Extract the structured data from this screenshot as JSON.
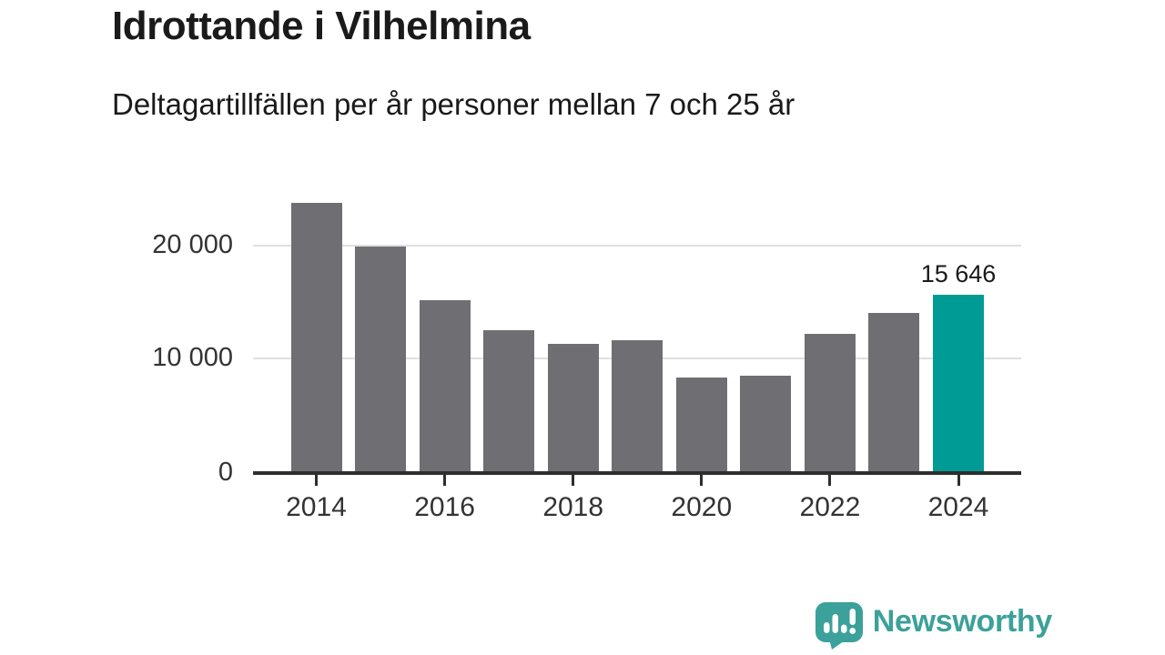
{
  "colors": {
    "text": "#1a1a1a",
    "bar": "#6e6e73",
    "highlight": "#009b94",
    "grid": "#e0e0e0",
    "axis": "#2e2e2e",
    "brand": "#3ba19a"
  },
  "header": {
    "title": "Idrottande i Vilhelmina",
    "subtitle": "Deltagartillfällen per år personer mellan 7 och 25 år"
  },
  "chart_data": {
    "type": "bar",
    "title": "Idrottande i Vilhelmina",
    "subtitle": "Deltagartillfällen per år personer mellan 7 och 25 år",
    "categories": [
      "2014",
      "2015",
      "2016",
      "2017",
      "2018",
      "2019",
      "2020",
      "2021",
      "2022",
      "2023",
      "2024"
    ],
    "values": [
      23800,
      19900,
      15150,
      12500,
      11300,
      11650,
      8300,
      8450,
      12150,
      14050,
      15646
    ],
    "ylim": [
      0,
      25000
    ],
    "grid": true,
    "yticks": [
      {
        "value": 0,
        "label": "0"
      },
      {
        "value": 10000,
        "label": "10 000"
      },
      {
        "value": 20000,
        "label": "20 000"
      }
    ],
    "xticks": [
      {
        "index": 0,
        "label": "2014"
      },
      {
        "index": 2,
        "label": "2016"
      },
      {
        "index": 4,
        "label": "2018"
      },
      {
        "index": 6,
        "label": "2020"
      },
      {
        "index": 8,
        "label": "2022"
      },
      {
        "index": 10,
        "label": "2024"
      }
    ],
    "highlight": {
      "index": 10,
      "label": "15 646"
    },
    "bar_color": "#6e6e73",
    "highlight_color": "#009b94"
  },
  "footer": {
    "brand": "Newsworthy",
    "logo_icon": "newsworthy-speech-bubble-bar-chart-icon"
  }
}
